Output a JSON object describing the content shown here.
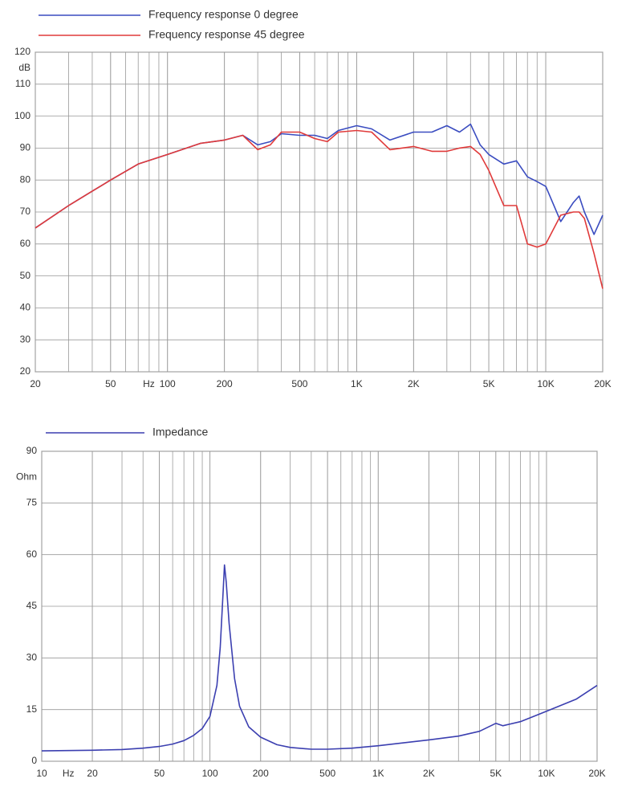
{
  "chart_data": [
    {
      "type": "line",
      "xscale": "log",
      "grid": true,
      "xlabel": "Hz",
      "ylabel": "dB",
      "xlim": [
        20,
        20000
      ],
      "ylim": [
        20,
        120
      ],
      "xticks": [
        20,
        50,
        100,
        200,
        500,
        {
          "value": 1000,
          "label": "1K"
        },
        {
          "value": 2000,
          "label": "2K"
        },
        {
          "value": 5000,
          "label": "5K"
        },
        {
          "value": 10000,
          "label": "10K"
        },
        {
          "value": 20000,
          "label": "20K"
        }
      ],
      "yticks": [
        20,
        30,
        40,
        50,
        60,
        70,
        80,
        90,
        100,
        110,
        120
      ],
      "x": [
        20,
        30,
        40,
        50,
        70,
        100,
        150,
        200,
        250,
        300,
        350,
        400,
        500,
        600,
        700,
        800,
        1000,
        1200,
        1500,
        2000,
        2500,
        3000,
        3500,
        4000,
        4500,
        5000,
        6000,
        7000,
        8000,
        9000,
        10000,
        12000,
        14000,
        15000,
        16000,
        18000,
        20000
      ],
      "series": [
        {
          "name": "Frequency response 0 degree",
          "color": "#3a4cc0",
          "values": [
            65,
            72,
            76.5,
            80,
            85,
            88,
            91.5,
            92.5,
            94,
            91,
            92,
            94.5,
            94,
            94,
            93,
            95.5,
            97,
            96,
            92.5,
            95,
            95,
            97,
            95,
            97.5,
            91,
            88,
            85,
            86,
            81,
            79.5,
            78,
            67,
            73,
            75,
            70,
            63,
            69
          ]
        },
        {
          "name": "Frequency response 45 degree",
          "color": "#e03a3a",
          "values": [
            65,
            72,
            76.5,
            80,
            85,
            88,
            91.5,
            92.5,
            94,
            89.5,
            91,
            95,
            95,
            93,
            92,
            95,
            95.5,
            95,
            89.5,
            90.5,
            89,
            89,
            90,
            90.5,
            88,
            83,
            72,
            72,
            60,
            59,
            60,
            69,
            70,
            70,
            68,
            57,
            46
          ]
        }
      ]
    },
    {
      "type": "line",
      "xscale": "log",
      "grid": true,
      "xlabel": "Hz",
      "ylabel": "Ohm",
      "xlim": [
        10,
        20000
      ],
      "ylim": [
        0,
        90
      ],
      "xticks": [
        10,
        20,
        50,
        100,
        200,
        500,
        {
          "value": 1000,
          "label": "1K"
        },
        {
          "value": 2000,
          "label": "2K"
        },
        {
          "value": 5000,
          "label": "5K"
        },
        {
          "value": 10000,
          "label": "10K"
        },
        {
          "value": 20000,
          "label": "20K"
        }
      ],
      "yticks": [
        0,
        15,
        30,
        45,
        60,
        75,
        90
      ],
      "x": [
        10,
        20,
        30,
        40,
        50,
        60,
        70,
        80,
        90,
        100,
        110,
        115,
        120,
        122,
        125,
        130,
        140,
        150,
        170,
        200,
        250,
        300,
        400,
        500,
        700,
        1000,
        1500,
        2000,
        3000,
        4000,
        5000,
        5500,
        7000,
        10000,
        15000,
        20000
      ],
      "series": [
        {
          "name": "Impedance",
          "color": "#3b3fb0",
          "values": [
            3,
            3.2,
            3.4,
            3.8,
            4.3,
            5,
            6,
            7.5,
            9.5,
            13,
            22,
            33,
            50,
            57,
            52,
            40,
            24,
            16,
            10,
            7,
            4.8,
            4,
            3.5,
            3.5,
            3.8,
            4.5,
            5.5,
            6.2,
            7.3,
            8.7,
            11,
            10.3,
            11.5,
            14.5,
            18,
            22
          ]
        }
      ]
    }
  ]
}
